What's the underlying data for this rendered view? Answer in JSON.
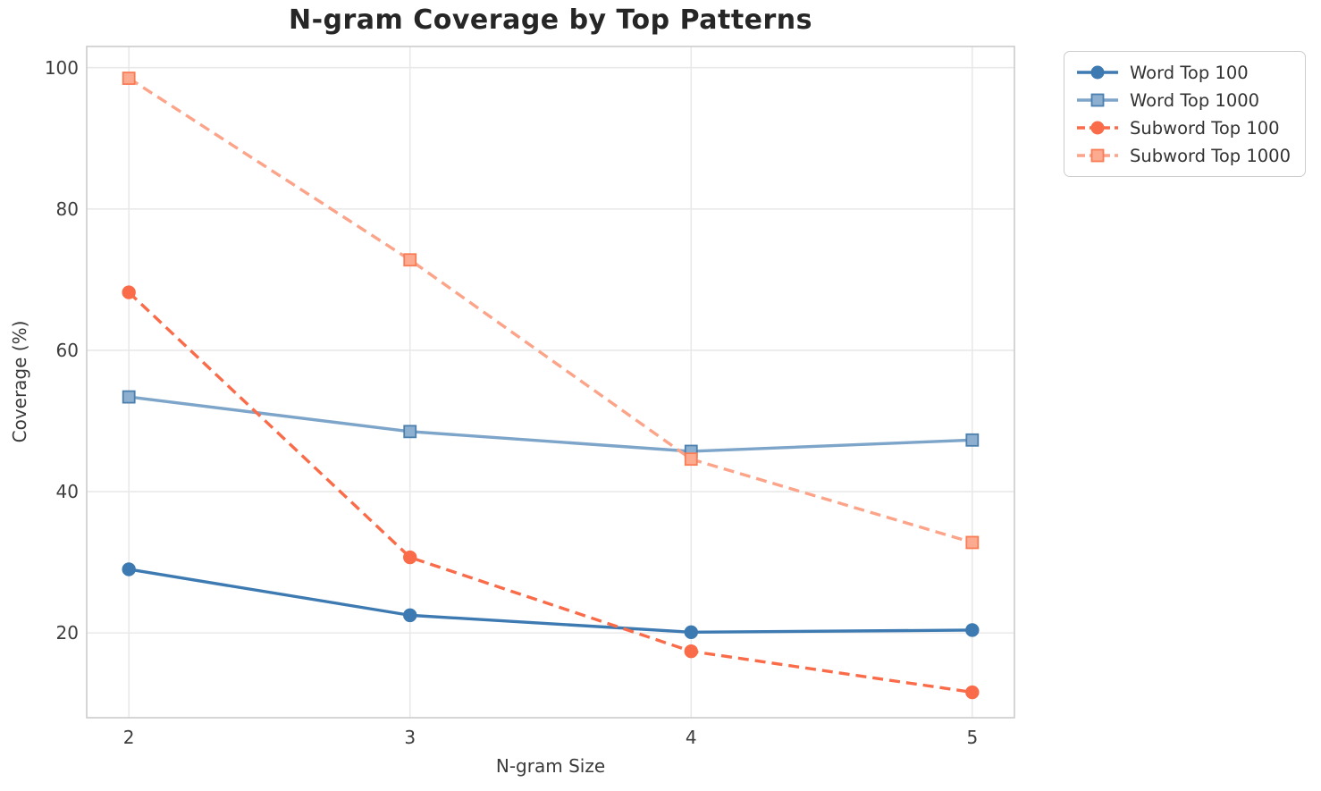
{
  "chart_data": {
    "type": "line",
    "title": "N-gram Coverage by Top Patterns",
    "xlabel": "N-gram Size",
    "ylabel": "Coverage (%)",
    "x": [
      2,
      3,
      4,
      5
    ],
    "xticks": [
      2,
      3,
      4,
      5
    ],
    "yticks": [
      20,
      40,
      60,
      80,
      100
    ],
    "xlim": [
      1.85,
      5.15
    ],
    "ylim": [
      8,
      103
    ],
    "grid": true,
    "legend_position": "outside-top-right",
    "series": [
      {
        "name": "Word Top 100",
        "values": [
          29.0,
          22.5,
          20.1,
          20.4
        ],
        "color": "#3d7ab2",
        "marker_fill": "#3d7ab2",
        "marker_edge": "#3d7ab2",
        "line_style": "solid",
        "marker": "circle"
      },
      {
        "name": "Word Top 1000",
        "values": [
          53.4,
          48.5,
          45.7,
          47.3
        ],
        "color": "#7da4c9",
        "marker_fill": "#8db0d1",
        "marker_edge": "#4a7fae",
        "line_style": "solid",
        "marker": "square"
      },
      {
        "name": "Subword Top 100",
        "values": [
          68.2,
          30.7,
          17.4,
          11.6
        ],
        "color": "#fa6c49",
        "marker_fill": "#fa6c49",
        "marker_edge": "#fa6c49",
        "line_style": "dashed",
        "marker": "circle"
      },
      {
        "name": "Subword Top 1000",
        "values": [
          98.5,
          72.8,
          44.6,
          32.8
        ],
        "color": "#fca489",
        "marker_fill": "#fcab90",
        "marker_edge": "#fa7c55",
        "line_style": "dashed",
        "marker": "square"
      }
    ]
  },
  "colors": {
    "background": "#ffffff",
    "grid": "#e9e9e9",
    "spine": "#cccccc",
    "tick_text": "#3d3d3d",
    "title_text": "#262626",
    "legend_border": "#cccccc"
  }
}
